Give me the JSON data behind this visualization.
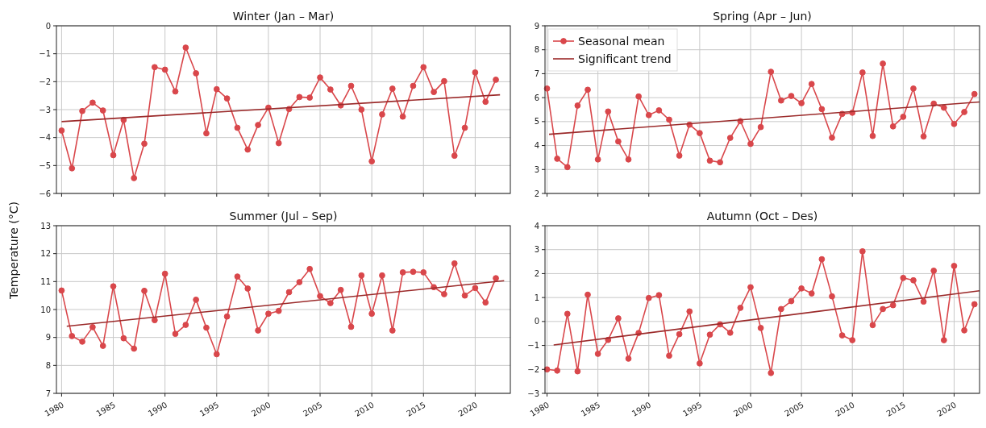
{
  "chart_data": [
    {
      "type": "line",
      "title": "Winter (Jan – Mar)",
      "ylabel": "Temperature (°C)",
      "xlim": [
        1979.5,
        2023.4
      ],
      "ylim": [
        -6,
        0
      ],
      "xticks": [
        1980,
        1985,
        1990,
        1995,
        2000,
        2005,
        2010,
        2015,
        2020
      ],
      "yticks": [
        -6,
        -5,
        -4,
        -3,
        -2,
        -1,
        0
      ],
      "grid": true,
      "legend": false,
      "tick_labels": "y",
      "series": [
        {
          "color": "#d9474b",
          "marker": "circle",
          "x": [
            1980,
            1981,
            1982,
            1983,
            1984,
            1985,
            1986,
            1987,
            1988,
            1989,
            1990,
            1991,
            1992,
            1993,
            1994,
            1995,
            1996,
            1997,
            1998,
            1999,
            2000,
            2001,
            2002,
            2003,
            2004,
            2005,
            2006,
            2007,
            2008,
            2009,
            2010,
            2011,
            2012,
            2013,
            2014,
            2015,
            2016,
            2017,
            2018,
            2019,
            2020,
            2021,
            2022
          ],
          "values": [
            -3.75,
            -5.1,
            -3.05,
            -2.75,
            -3.03,
            -4.63,
            -3.37,
            -5.45,
            -4.22,
            -1.48,
            -1.57,
            -2.35,
            -0.78,
            -1.7,
            -3.85,
            -2.27,
            -2.6,
            -3.65,
            -4.43,
            -3.55,
            -2.93,
            -4.2,
            -2.98,
            -2.55,
            -2.57,
            -1.85,
            -2.28,
            -2.85,
            -2.15,
            -3.0,
            -4.85,
            -3.17,
            -2.25,
            -3.25,
            -2.15,
            -1.48,
            -2.37,
            -1.98,
            -4.65,
            -3.65,
            -1.67,
            -2.72,
            -1.93
          ]
        },
        {
          "color": "#9b2a2a",
          "marker": "none",
          "x": [
            1980,
            2022.4
          ],
          "values": [
            -3.43,
            -2.47
          ]
        }
      ]
    },
    {
      "type": "line",
      "title": "Spring (Apr – Jun)",
      "xlim": [
        1979.8,
        2022.5
      ],
      "ylim": [
        2,
        9
      ],
      "xticks": [
        1980,
        1985,
        1990,
        1995,
        2000,
        2005,
        2010,
        2015,
        2020
      ],
      "yticks": [
        2,
        3,
        4,
        5,
        6,
        7,
        8,
        9
      ],
      "grid": true,
      "legend": "top left",
      "tick_labels": "y",
      "series": [
        {
          "name": "Seasonal mean",
          "color": "#d9474b",
          "marker": "circle",
          "x": [
            1980,
            1981,
            1982,
            1983,
            1984,
            1985,
            1986,
            1987,
            1988,
            1989,
            1990,
            1991,
            1992,
            1993,
            1994,
            1995,
            1996,
            1997,
            1998,
            1999,
            2000,
            2001,
            2002,
            2003,
            2004,
            2005,
            2006,
            2007,
            2008,
            2009,
            2010,
            2011,
            2012,
            2013,
            2014,
            2015,
            2016,
            2017,
            2018,
            2019,
            2020,
            2021,
            2022
          ],
          "values": [
            6.38,
            3.45,
            3.1,
            5.67,
            6.33,
            3.42,
            5.42,
            4.17,
            3.42,
            6.05,
            5.27,
            5.47,
            5.08,
            3.58,
            4.87,
            4.52,
            3.37,
            3.3,
            4.32,
            5.02,
            4.07,
            4.77,
            7.08,
            5.88,
            6.07,
            5.77,
            6.57,
            5.52,
            4.33,
            5.32,
            5.37,
            7.05,
            4.4,
            7.42,
            4.8,
            5.2,
            6.38,
            4.38,
            5.75,
            5.58,
            4.9,
            5.4,
            6.15
          ]
        },
        {
          "name": "Significant trend",
          "color": "#9b2a2a",
          "marker": "none",
          "x": [
            1980.2,
            2022.5
          ],
          "values": [
            4.47,
            5.82
          ]
        }
      ]
    },
    {
      "type": "line",
      "title": "Summer (Jul – Sep)",
      "xlim": [
        1979.5,
        2023.4
      ],
      "ylim": [
        7,
        13
      ],
      "xticks": [
        1980,
        1985,
        1990,
        1995,
        2000,
        2005,
        2010,
        2015,
        2020
      ],
      "yticks": [
        7,
        8,
        9,
        10,
        11,
        12,
        13
      ],
      "grid": true,
      "legend": false,
      "series": [
        {
          "color": "#d9474b",
          "marker": "circle",
          "x": [
            1980,
            1981,
            1982,
            1983,
            1984,
            1985,
            1986,
            1987,
            1988,
            1989,
            1990,
            1991,
            1992,
            1993,
            1994,
            1995,
            1996,
            1997,
            1998,
            1999,
            2000,
            2001,
            2002,
            2003,
            2004,
            2005,
            2006,
            2007,
            2008,
            2009,
            2010,
            2011,
            2012,
            2013,
            2014,
            2015,
            2016,
            2017,
            2018,
            2019,
            2020,
            2021,
            2022
          ],
          "values": [
            10.68,
            9.05,
            8.85,
            9.37,
            8.7,
            10.83,
            8.97,
            8.6,
            10.67,
            9.62,
            11.28,
            9.13,
            9.45,
            10.35,
            9.35,
            8.4,
            9.75,
            11.18,
            10.75,
            9.25,
            9.85,
            9.95,
            10.62,
            10.98,
            11.45,
            10.48,
            10.23,
            10.7,
            9.38,
            11.22,
            9.85,
            11.22,
            9.25,
            11.33,
            11.35,
            11.33,
            10.8,
            10.55,
            11.65,
            10.5,
            10.77,
            10.25,
            11.12
          ]
        },
        {
          "color": "#9b2a2a",
          "marker": "none",
          "x": [
            1980.5,
            2022.8
          ],
          "values": [
            9.4,
            11.03
          ]
        }
      ]
    },
    {
      "type": "line",
      "title": "Autumn (Oct – Des)",
      "xlim": [
        1979.8,
        2022.5
      ],
      "ylim": [
        -3,
        4
      ],
      "xticks": [
        1980,
        1985,
        1990,
        1995,
        2000,
        2005,
        2010,
        2015,
        2020
      ],
      "yticks": [
        -3,
        -2,
        -1,
        0,
        1,
        2,
        3,
        4
      ],
      "grid": true,
      "legend": false,
      "series": [
        {
          "color": "#d9474b",
          "marker": "circle",
          "x": [
            1980,
            1981,
            1982,
            1983,
            1984,
            1985,
            1986,
            1987,
            1988,
            1989,
            1990,
            1991,
            1992,
            1993,
            1994,
            1995,
            1996,
            1997,
            1998,
            1999,
            2000,
            2001,
            2002,
            2003,
            2004,
            2005,
            2006,
            2007,
            2008,
            2009,
            2010,
            2011,
            2012,
            2013,
            2014,
            2015,
            2016,
            2017,
            2018,
            2019,
            2020,
            2021,
            2022
          ],
          "values": [
            -2.0,
            -2.05,
            0.32,
            -2.08,
            1.12,
            -1.35,
            -0.77,
            0.13,
            -1.55,
            -0.48,
            0.98,
            1.1,
            -1.43,
            -0.53,
            0.42,
            -1.75,
            -0.55,
            -0.12,
            -0.47,
            0.57,
            1.43,
            -0.27,
            -2.15,
            0.52,
            0.85,
            1.38,
            1.17,
            2.6,
            1.05,
            -0.58,
            -0.78,
            2.93,
            -0.15,
            0.52,
            0.68,
            1.82,
            1.72,
            0.83,
            2.12,
            -0.78,
            2.32,
            -0.37,
            0.72
          ]
        },
        {
          "color": "#9b2a2a",
          "marker": "none",
          "x": [
            1980.65,
            2022.5
          ],
          "values": [
            -0.98,
            1.28
          ]
        }
      ]
    }
  ]
}
